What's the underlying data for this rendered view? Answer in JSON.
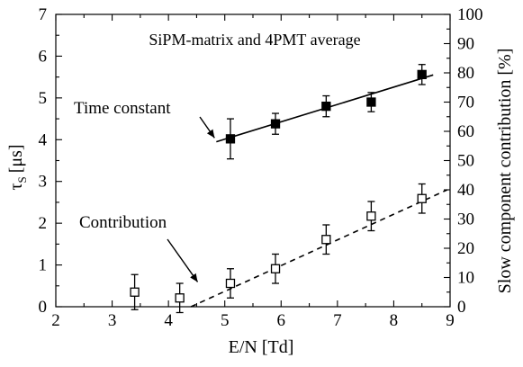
{
  "chart_data": {
    "type": "scatter",
    "title": "SiPM-matrix and 4PMT average",
    "xlabel": "E/N [Td]",
    "ylabel": "τS [μs]",
    "ylabel_main": "τ",
    "ylabel_sub": "S",
    "ylabel_unit": "[μs]",
    "y2label": "Slow component contribution [%]",
    "xlim": [
      2,
      9
    ],
    "ylim": [
      0,
      7
    ],
    "y2lim": [
      0,
      100
    ],
    "xticks": [
      "2",
      "3",
      "4",
      "5",
      "6",
      "7",
      "8",
      "9"
    ],
    "yticks": [
      "0",
      "1",
      "2",
      "3",
      "4",
      "5",
      "6",
      "7"
    ],
    "y2ticks": [
      "0",
      "10",
      "20",
      "30",
      "40",
      "50",
      "60",
      "70",
      "80",
      "90",
      "100"
    ],
    "grid": false,
    "series": [
      {
        "name": "Time constant",
        "axis": "left",
        "marker": "filled-square",
        "x": [
          5.1,
          5.9,
          6.8,
          7.6,
          8.5
        ],
        "y": [
          4.02,
          4.38,
          4.8,
          4.9,
          5.56
        ],
        "yerr": [
          0.48,
          0.25,
          0.25,
          0.23,
          0.24
        ],
        "fit": {
          "style": "solid",
          "x": [
            4.85,
            8.7
          ],
          "y": [
            3.95,
            5.55
          ]
        }
      },
      {
        "name": "Contribution",
        "axis": "right",
        "marker": "open-square",
        "x": [
          3.4,
          4.2,
          5.1,
          5.9,
          6.8,
          7.6,
          8.5
        ],
        "y": [
          5.0,
          3.0,
          8.0,
          13.0,
          23.0,
          31.0,
          37.0
        ],
        "yerr": [
          6.0,
          5.0,
          5.0,
          5.0,
          5.0,
          5.0,
          5.0
        ],
        "fit": {
          "style": "dashed",
          "x": [
            4.4,
            8.95
          ],
          "y": [
            0,
            40
          ]
        }
      }
    ],
    "annotations": [
      {
        "text": "Time constant",
        "arrow_to": [
          4.85,
          4.0
        ]
      },
      {
        "text": "Contribution",
        "arrow_to": [
          4.55,
          0.55
        ]
      }
    ]
  }
}
